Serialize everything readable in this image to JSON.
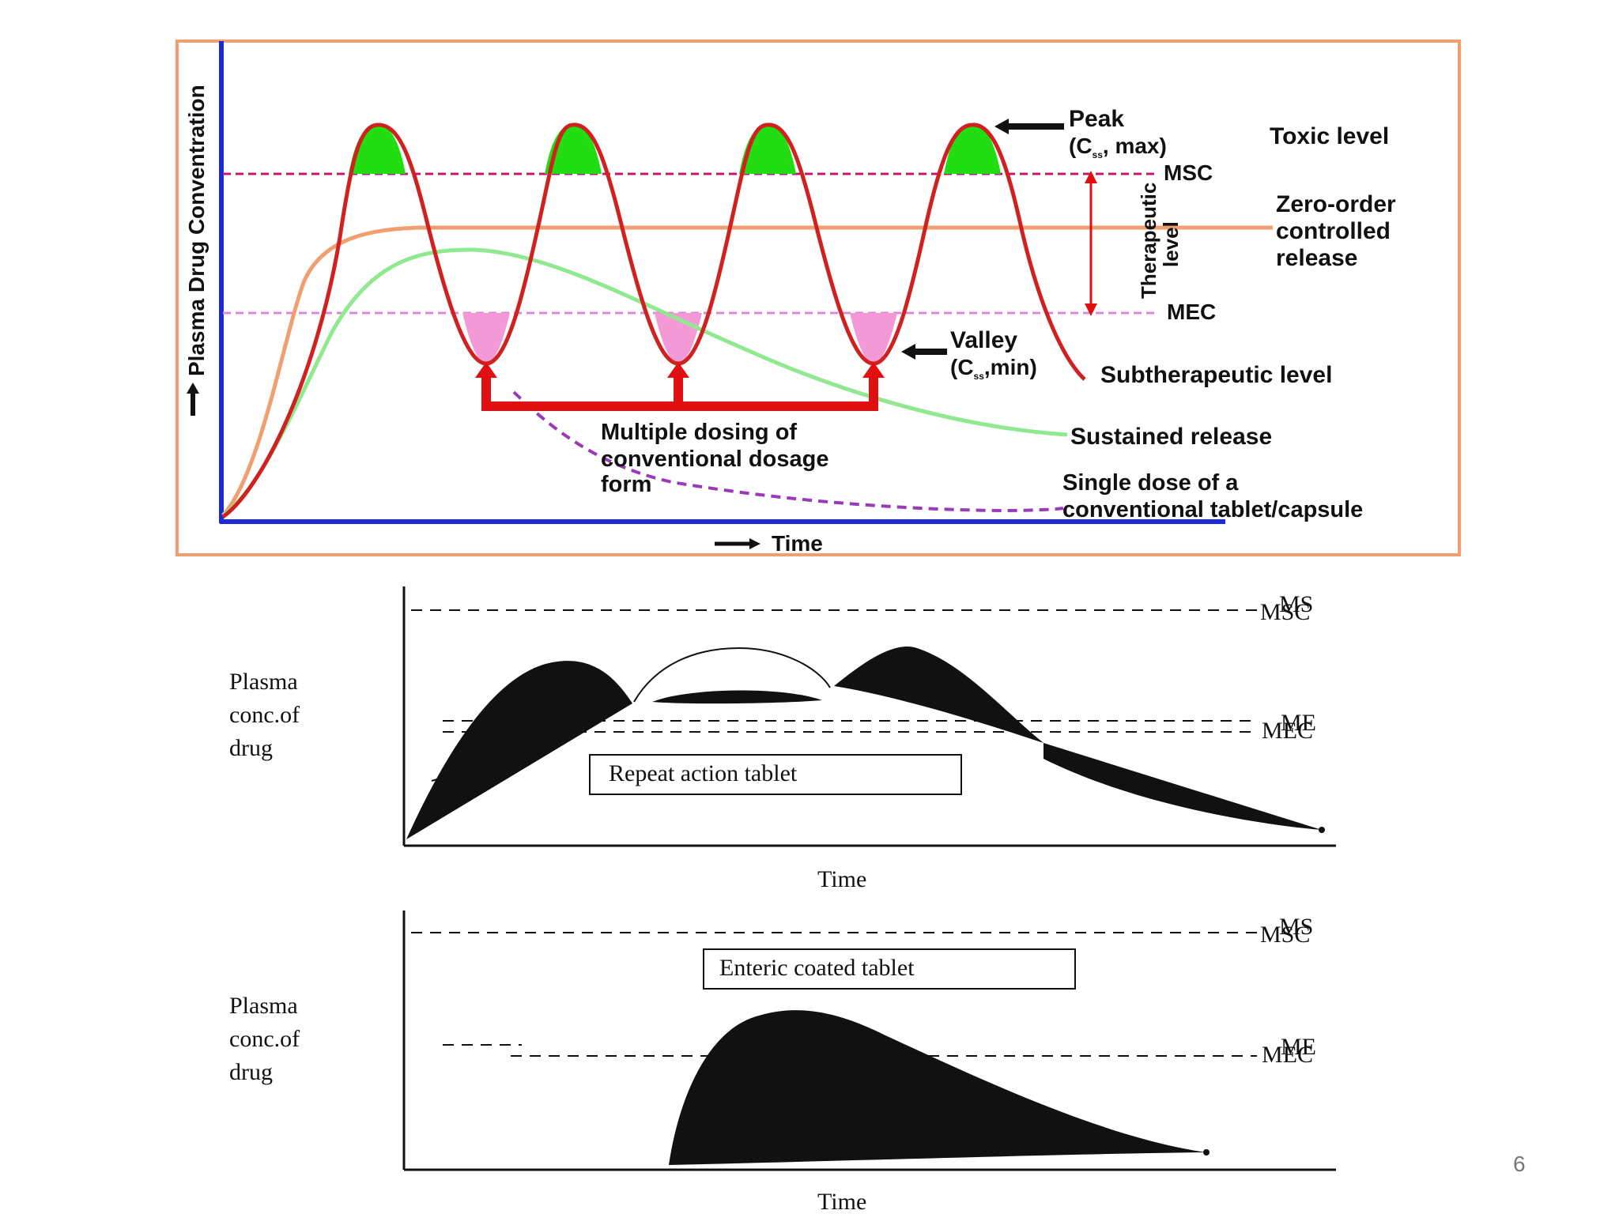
{
  "slide_number": "6",
  "chart_data": [
    {
      "type": "line",
      "ylabel": "Plasma Drug Conventration",
      "xlabel": "Time",
      "grid": false,
      "reference_lines": [
        {
          "label": "MSC",
          "y": 100,
          "style": "dashed",
          "color": "#c01878"
        },
        {
          "label": "MEC",
          "y": 40,
          "style": "dashed",
          "color": "#d88ad8"
        }
      ],
      "series": [
        {
          "name": "Zero-order controlled release",
          "color": "#f0a070",
          "x": [
            0,
            3,
            6,
            10,
            15,
            25,
            50,
            100
          ],
          "y": [
            0,
            45,
            68,
            76,
            77,
            77,
            77,
            77
          ]
        },
        {
          "name": "Sustained release",
          "color": "#90e890",
          "x": [
            0,
            5,
            10,
            15,
            20,
            30,
            40,
            50,
            60,
            70,
            75
          ],
          "y": [
            0,
            35,
            63,
            70,
            71,
            66,
            55,
            42,
            30,
            20,
            17
          ]
        },
        {
          "name": "Multiple dosing of conventional dosage form",
          "color": "#d02020",
          "x": [
            0,
            10,
            13,
            20,
            27,
            30,
            35,
            43,
            47,
            55,
            59,
            63,
            71,
            75,
            80
          ],
          "y": [
            0,
            75,
            112,
            24,
            112,
            75,
            24,
            112,
            24,
            112,
            24,
            112,
            24,
            112,
            20
          ]
        },
        {
          "name": "Single dose of a conventional tablet/capsule",
          "color": "#9a3ab8",
          "style": "dashed",
          "x": [
            26,
            30,
            40,
            50,
            60,
            70,
            80
          ],
          "y": [
            18,
            8,
            -8,
            -18,
            -24,
            -27,
            -25
          ]
        }
      ],
      "annotations": [
        {
          "text": "Peak",
          "sub": "(C",
          "sub_index": "ss",
          "sub_end": ", max)"
        },
        {
          "text": "Valley",
          "sub": "(C",
          "sub_index": "ss",
          "sub_end": ",min)"
        },
        {
          "text": "Toxic level"
        },
        {
          "text": "Therapeutic level"
        },
        {
          "text": "Subtherapeutic level"
        },
        {
          "text": "Multiple dosing of conventional dosage form"
        }
      ],
      "peaks_fill": "#22dd11",
      "valleys_fill": "#f39ad6"
    },
    {
      "type": "area",
      "title": "Repeat action tablet",
      "ylabel": "Plasma conc.of drug",
      "xlabel": "Time",
      "reference_lines": [
        {
          "label": "MSC",
          "y": 100
        },
        {
          "label": "MEC",
          "y": 45
        }
      ],
      "series": [
        {
          "x": [
            0,
            10,
            17,
            25,
            30,
            35,
            42,
            50,
            70,
            100
          ],
          "y": [
            0,
            55,
            82,
            60,
            70,
            62,
            85,
            70,
            25,
            8
          ]
        }
      ]
    },
    {
      "type": "area",
      "title": "Enteric coated tablet",
      "ylabel": "Plasma conc.of drug",
      "xlabel": "Time",
      "reference_lines": [
        {
          "label": "MSC",
          "y": 100
        },
        {
          "label": "MEC",
          "y": 45
        }
      ],
      "series": [
        {
          "x": [
            29,
            32,
            38,
            44,
            55,
            70,
            87
          ],
          "y": [
            0,
            50,
            82,
            86,
            72,
            42,
            8
          ]
        }
      ]
    }
  ],
  "labels": {
    "peak_line1": "Peak",
    "peak_line2_a": "(C",
    "peak_line2_b": "ss",
    "peak_line2_c": ", max)",
    "msc": "MSC",
    "mec": "MEC",
    "toxic": "Toxic level",
    "zero_order_1": "Zero-order",
    "zero_order_2": "controlled",
    "zero_order_3": "release",
    "therapeutic_1": "Therapeutic",
    "therapeutic_2": "level",
    "valley_line1": "Valley",
    "valley_line2_a": "(C",
    "valley_line2_b": "ss",
    "valley_line2_c": ",min)",
    "subtherapeutic": "Subtherapeutic level",
    "multiple_1": "Multiple dosing of",
    "multiple_2": "conventional dosage",
    "multiple_3": "form",
    "sustained": "Sustained release",
    "single_1": "Single dose of a",
    "single_2": "conventional tablet/capsule",
    "ylabel_top": "Plasma Drug Conventration",
    "time_top": "Time",
    "plasma_1": "Plasma",
    "plasma_2": "conc.of",
    "plasma_3": "drug",
    "repeat_box": "Repeat action tablet",
    "enteric_box": "Enteric coated tablet",
    "time_bottom": "Time",
    "msc_b": "MSC",
    "mec_b": "MEC",
    "msc_b_over": "MS",
    "mec_b_over": "ME"
  }
}
